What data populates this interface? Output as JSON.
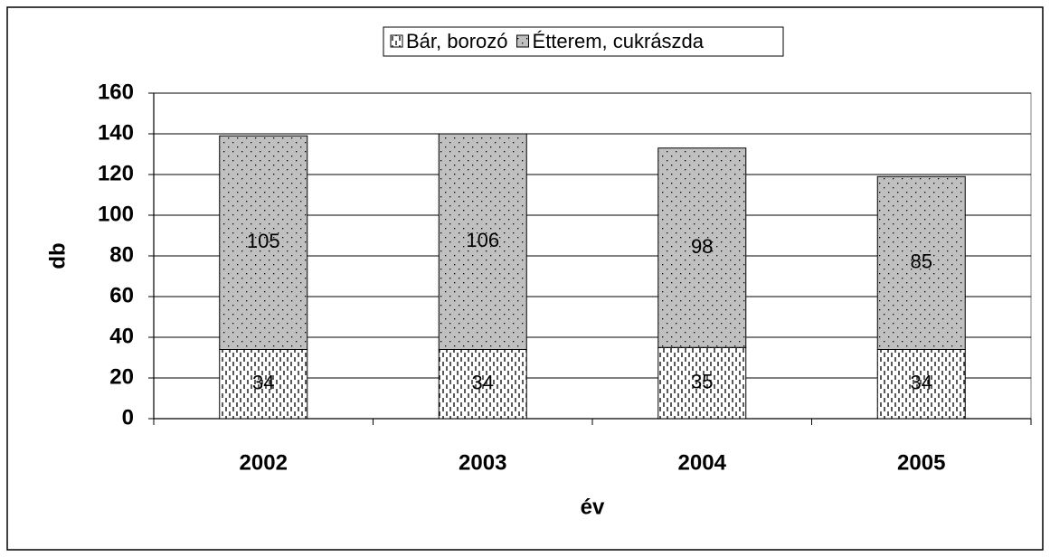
{
  "chart_data": {
    "type": "stacked_bar",
    "categories": [
      "2002",
      "2003",
      "2004",
      "2005"
    ],
    "series": [
      {
        "name": "Bár, borozó",
        "color": "#ffffff",
        "values": [
          34,
          34,
          35,
          34
        ]
      },
      {
        "name": "Étterem, cukrászda",
        "color": "#c0c0c0",
        "values": [
          105,
          106,
          98,
          85
        ]
      }
    ],
    "xlabel": "év",
    "ylabel": "db",
    "ylim": [
      0,
      160
    ],
    "yticks": [
      0,
      20,
      40,
      60,
      80,
      100,
      120,
      140,
      160
    ],
    "grid": true,
    "legend": "top"
  }
}
